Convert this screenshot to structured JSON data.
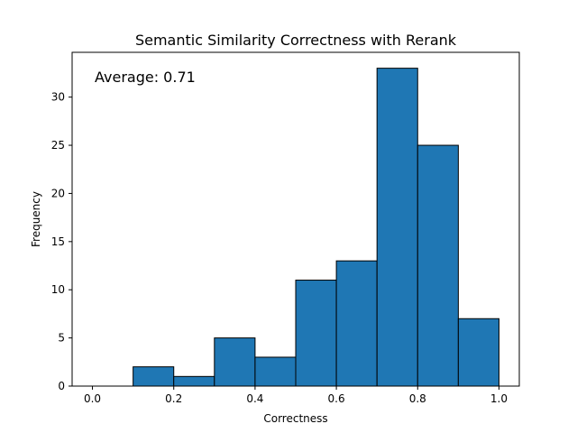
{
  "chart_data": {
    "type": "bar",
    "title": "Semantic Similarity Correctness with Rerank",
    "xlabel": "Correctness",
    "ylabel": "Frequency",
    "annotation": "Average: 0.71",
    "bin_edges": [
      0.0,
      0.1,
      0.2,
      0.3,
      0.4,
      0.5,
      0.6,
      0.7,
      0.8,
      0.9,
      1.0
    ],
    "values": [
      0,
      2,
      1,
      5,
      3,
      11,
      13,
      33,
      25,
      7
    ],
    "xlim": [
      -0.05,
      1.05
    ],
    "ylim": [
      0,
      34.65
    ],
    "xticks": [
      0.0,
      0.2,
      0.4,
      0.6,
      0.8,
      1.0
    ],
    "xtick_labels": [
      "0.0",
      "0.2",
      "0.4",
      "0.6",
      "0.8",
      "1.0"
    ],
    "yticks": [
      0,
      5,
      10,
      15,
      20,
      25,
      30
    ],
    "ytick_labels": [
      "0",
      "5",
      "10",
      "15",
      "20",
      "25",
      "30"
    ],
    "grid": false,
    "bar_color": "#1f77b4",
    "edge_color": "#000000"
  }
}
